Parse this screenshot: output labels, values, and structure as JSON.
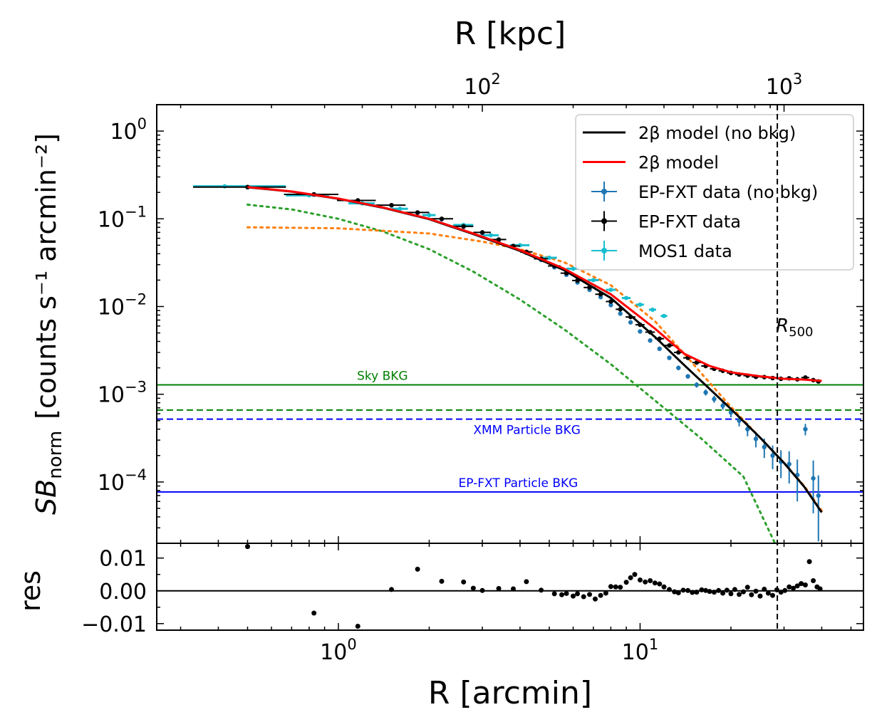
{
  "chart_data": [
    {
      "type": "scatter",
      "title": "",
      "xlabel": "R [arcmin]",
      "top_xlabel": "R [kpc]",
      "ylabel_prefix": "SB",
      "ylabel_sub": "norm",
      "ylabel_units": "[counts s⁻¹ arcmin⁻²]",
      "xscale": "log",
      "yscale": "log",
      "xlim": [
        0.25,
        55
      ],
      "ylim": [
        2e-05,
        2
      ],
      "x_ticks": [
        {
          "value": 1,
          "base": "10",
          "exp": "0"
        },
        {
          "value": 10,
          "base": "10",
          "exp": "1"
        }
      ],
      "top_x_ticks": [
        {
          "value": 3.0,
          "base": "10",
          "exp": "2"
        },
        {
          "value": 30.0,
          "base": "10",
          "exp": "3"
        }
      ],
      "y_ticks": [
        {
          "value": 1,
          "base": "10",
          "exp": "0"
        },
        {
          "value": 0.1,
          "base": "10",
          "exp": "−1"
        },
        {
          "value": 0.01,
          "base": "10",
          "exp": "−2"
        },
        {
          "value": 0.001,
          "base": "10",
          "exp": "−3"
        },
        {
          "value": 0.0001,
          "base": "10",
          "exp": "−4"
        }
      ],
      "legend_position": "top-right",
      "legend": [
        {
          "label": "2β model (no bkg)",
          "color": "#000000",
          "kind": "line"
        },
        {
          "label": "2β model",
          "color": "#ff0000",
          "kind": "line"
        },
        {
          "label": "EP-FXT data (no bkg)",
          "color": "#1f77b4",
          "kind": "errorbar"
        },
        {
          "label": "EP-FXT data",
          "color": "#000000",
          "kind": "errorbar"
        },
        {
          "label": "MOS1 data",
          "color": "#17becf",
          "kind": "errorbar"
        }
      ],
      "r500": {
        "x": 28.5,
        "label": "R",
        "sub": "500"
      },
      "background_lines": [
        {
          "name": "Sky BKG",
          "y": 0.00128,
          "color": "#008000",
          "style": "solid",
          "label": "Sky BKG",
          "label_x": 1.5,
          "label_pos": "above"
        },
        {
          "name": "Sky BKG dashed",
          "y": 0.00066,
          "color": "#008000",
          "style": "dashed",
          "label": "",
          "label_x": 1,
          "label_pos": "above"
        },
        {
          "name": "XMM Particle BKG",
          "y": 0.00052,
          "color": "#0000ff",
          "style": "dashed",
          "label": "XMM Particle BKG",
          "label_x": 6.3,
          "label_pos": "below"
        },
        {
          "name": "EP-FXT Particle BKG",
          "y": 7.7e-05,
          "color": "#0000ff",
          "style": "solid",
          "label": "EP-FXT Particle BKG",
          "label_x": 6.3,
          "label_pos": "above"
        }
      ],
      "series": [
        {
          "name": "MOS1 data",
          "color": "#17becf",
          "x": [
            0.42,
            0.8,
            1.2,
            1.6,
            2.0,
            2.6,
            3.2,
            4.0,
            5.0,
            6.0,
            7.0,
            8.0,
            9.0,
            10.0,
            11.0,
            12.0
          ],
          "xerr_lo": [
            0.09,
            0.13,
            0.12,
            0.1,
            0.1,
            0.2,
            0.2,
            0.3,
            0.3,
            0.3,
            0.3,
            0.3,
            0.3,
            0.3,
            0.3,
            0.3
          ],
          "xerr_hi": [
            0.25,
            0.13,
            0.12,
            0.1,
            0.1,
            0.2,
            0.2,
            0.3,
            0.3,
            0.3,
            0.3,
            0.3,
            0.3,
            0.3,
            0.3,
            0.3
          ],
          "y": [
            0.235,
            0.185,
            0.15,
            0.13,
            0.11,
            0.085,
            0.065,
            0.05,
            0.036,
            0.027,
            0.02,
            0.0155,
            0.0125,
            0.0105,
            0.0092,
            0.0078
          ]
        },
        {
          "name": "EP-FXT data",
          "color": "#000000",
          "x": [
            0.5,
            0.83,
            1.16,
            1.5,
            1.83,
            2.2,
            2.6,
            3.0,
            3.4,
            3.8,
            4.2,
            4.7,
            5.2,
            5.7,
            6.2,
            6.8,
            7.4,
            8.0,
            8.6,
            9.3,
            10.0,
            10.8,
            11.6,
            12.5,
            13.4,
            14.4,
            15.4,
            16.5,
            17.6,
            18.8,
            20.0,
            21.3,
            22.7,
            24.2,
            25.8,
            27.5,
            29.3,
            31.2,
            33.2,
            35.3,
            37.5,
            39.0
          ],
          "y": [
            0.23,
            0.19,
            0.162,
            0.143,
            0.118,
            0.1,
            0.082,
            0.07,
            0.058,
            0.049,
            0.042,
            0.035,
            0.029,
            0.024,
            0.0198,
            0.0165,
            0.0138,
            0.0114,
            0.0093,
            0.0076,
            0.0062,
            0.0051,
            0.0043,
            0.0036,
            0.003,
            0.0026,
            0.0023,
            0.0021,
            0.00195,
            0.00185,
            0.00175,
            0.00168,
            0.00163,
            0.00158,
            0.00157,
            0.00153,
            0.0015,
            0.00152,
            0.00148,
            0.00155,
            0.00145,
            0.0014
          ],
          "xerr": [
            0.17,
            0.17,
            0.17,
            0.17,
            0.17,
            0.2,
            0.2,
            0.2,
            0.2,
            0.2,
            0.2,
            0.25,
            0.25,
            0.25,
            0.25,
            0.3,
            0.3,
            0.3,
            0.3,
            0.35,
            0.35,
            0.4,
            0.4,
            0.45,
            0.45,
            0.5,
            0.5,
            0.55,
            0.55,
            0.6,
            0.6,
            0.65,
            0.7,
            0.75,
            0.8,
            0.85,
            0.9,
            0.95,
            1.0,
            1.05,
            1.1,
            0.8
          ]
        },
        {
          "name": "EP-FXT data (no bkg)",
          "color": "#1f77b4",
          "x": [
            0.5,
            0.83,
            1.16,
            1.5,
            1.83,
            2.2,
            2.6,
            3.0,
            3.4,
            3.8,
            4.2,
            4.7,
            5.2,
            5.7,
            6.2,
            6.8,
            7.4,
            8.0,
            8.6,
            9.3,
            10.0,
            10.8,
            11.6,
            12.5,
            13.4,
            14.4,
            15.4,
            16.5,
            17.6,
            18.8,
            20.0,
            21.3,
            22.7,
            24.2,
            25.8,
            27.5,
            29.3,
            31.2,
            33.2,
            35.3,
            37.5,
            39.0
          ],
          "y": [
            0.229,
            0.189,
            0.161,
            0.142,
            0.117,
            0.099,
            0.081,
            0.069,
            0.057,
            0.048,
            0.041,
            0.034,
            0.028,
            0.023,
            0.0188,
            0.0155,
            0.0128,
            0.0104,
            0.0083,
            0.0066,
            0.0052,
            0.0041,
            0.0033,
            0.0026,
            0.002,
            0.0016,
            0.00128,
            0.00105,
            0.00088,
            0.00074,
            0.00062,
            0.0005,
            0.0004,
            0.00031,
            0.00025,
            0.0002,
            0.00017,
            0.00016,
            0.00012,
            0.0004,
            0.00011,
            7e-05
          ],
          "yerr_frac": [
            0.02,
            0.02,
            0.02,
            0.02,
            0.02,
            0.02,
            0.02,
            0.02,
            0.02,
            0.02,
            0.02,
            0.02,
            0.02,
            0.03,
            0.03,
            0.03,
            0.03,
            0.03,
            0.04,
            0.04,
            0.04,
            0.05,
            0.05,
            0.05,
            0.06,
            0.06,
            0.07,
            0.08,
            0.09,
            0.1,
            0.12,
            0.14,
            0.17,
            0.2,
            0.25,
            0.3,
            0.35,
            0.4,
            0.5,
            0.15,
            0.6,
            0.7
          ]
        },
        {
          "name": "2β model",
          "color": "#ff0000",
          "style": "solid",
          "kind": "line",
          "x": [
            0.5,
            0.7,
            1.0,
            1.4,
            2.0,
            2.8,
            4.0,
            5.6,
            8.0,
            11.2,
            14.0,
            17.0,
            20.0,
            25.0,
            30.0,
            35.0,
            40.0
          ],
          "y": [
            0.23,
            0.205,
            0.17,
            0.135,
            0.1,
            0.068,
            0.044,
            0.027,
            0.0138,
            0.0056,
            0.0029,
            0.0021,
            0.00178,
            0.0016,
            0.0015,
            0.00147,
            0.00142
          ]
        },
        {
          "name": "2β model (no bkg)",
          "color": "#000000",
          "style": "solid",
          "kind": "line",
          "x": [
            0.5,
            0.7,
            1.0,
            1.4,
            2.0,
            2.8,
            4.0,
            5.6,
            8.0,
            11.2,
            14.0,
            17.0,
            20.0,
            25.0,
            30.0,
            35.0,
            40.0
          ],
          "y": [
            0.229,
            0.204,
            0.169,
            0.134,
            0.099,
            0.067,
            0.043,
            0.026,
            0.0125,
            0.0045,
            0.00215,
            0.00115,
            0.00068,
            0.00032,
            0.000165,
            8.8e-05,
            4.5e-05
          ]
        },
        {
          "name": "Component 1",
          "color": "#2ca02c",
          "style": "dotted",
          "kind": "line",
          "x": [
            0.5,
            0.7,
            1.0,
            1.4,
            2.0,
            2.8,
            4.0,
            5.6,
            8.0,
            11.2,
            16.0,
            22.0,
            28.0
          ],
          "y": [
            0.145,
            0.128,
            0.1,
            0.072,
            0.045,
            0.025,
            0.012,
            0.0055,
            0.0022,
            0.00085,
            0.00031,
            0.000115,
            2e-05
          ]
        },
        {
          "name": "Component 2",
          "color": "#ff7f0e",
          "style": "dotted",
          "kind": "line",
          "x": [
            0.5,
            1.0,
            2.0,
            3.0,
            4.0,
            5.6,
            8.0,
            11.2,
            14.0,
            17.0,
            20.0,
            25.0,
            30.0,
            35.0,
            40.0
          ],
          "y": [
            0.08,
            0.078,
            0.068,
            0.055,
            0.045,
            0.032,
            0.0175,
            0.0068,
            0.0029,
            0.00135,
            0.00072,
            0.00032,
            0.000165,
            9e-05,
            4.7e-05
          ]
        }
      ]
    },
    {
      "type": "scatter",
      "ylabel": "res",
      "xscale": "log",
      "ylim": [
        -0.012,
        0.0145
      ],
      "y_ticks": [
        {
          "value": 0.01,
          "label": "0.01"
        },
        {
          "value": 0.0,
          "label": "0.00"
        },
        {
          "value": -0.01,
          "label": "−0.01"
        }
      ],
      "zero_line": 0,
      "series": [
        {
          "name": "residuals",
          "color": "#000000",
          "x": [
            0.5,
            0.83,
            1.16,
            1.5,
            1.83,
            2.2,
            2.6,
            2.8,
            3.0,
            3.4,
            3.8,
            4.2,
            4.7,
            5.2,
            5.5,
            5.7,
            6.0,
            6.2,
            6.5,
            6.8,
            7.1,
            7.4,
            7.7,
            8.0,
            8.3,
            8.6,
            9.0,
            9.3,
            9.6,
            10.0,
            10.4,
            10.8,
            11.2,
            11.6,
            12.0,
            12.5,
            13.0,
            13.4,
            13.9,
            14.4,
            14.9,
            15.4,
            16.0,
            16.5,
            17.0,
            17.6,
            18.2,
            18.8,
            19.4,
            20.0,
            20.6,
            21.3,
            22.0,
            22.7,
            23.4,
            24.2,
            25.0,
            25.8,
            26.6,
            27.5,
            28.4,
            29.3,
            30.2,
            31.2,
            32.2,
            33.2,
            34.2,
            35.3,
            36.4,
            37.5,
            38.6,
            39.5
          ],
          "y": [
            0.0135,
            -0.0068,
            -0.0108,
            0.0004,
            0.0066,
            0.0029,
            0.0027,
            0.0008,
            0.0001,
            0.0007,
            0.0006,
            0.0028,
            0.0002,
            -0.0009,
            -0.0012,
            -0.0008,
            -0.0016,
            -0.0009,
            -0.0018,
            -0.0011,
            -0.0025,
            -0.0014,
            -0.0007,
            0.0013,
            0.0012,
            0.0011,
            0.0026,
            0.004,
            0.005,
            0.0033,
            0.0027,
            0.0031,
            0.0024,
            0.0021,
            0.0012,
            0.0004,
            -0.0003,
            -0.0006,
            0.0002,
            0.0001,
            -0.0005,
            -0.0004,
            0.0003,
            0.0001,
            -0.0002,
            -0.0004,
            0.0001,
            -0.0007,
            0.0002,
            -0.0009,
            0.0004,
            -0.0011,
            -0.0003,
            0.0011,
            -0.0012,
            -0.0001,
            -0.0016,
            0.0005,
            -0.0007,
            -0.0014,
            0.0003,
            -0.0004,
            0.0001,
            0.0012,
            0.0008,
            0.0015,
            0.0022,
            0.0018,
            0.0089,
            0.0031,
            0.0012,
            0.0006
          ]
        }
      ]
    }
  ]
}
